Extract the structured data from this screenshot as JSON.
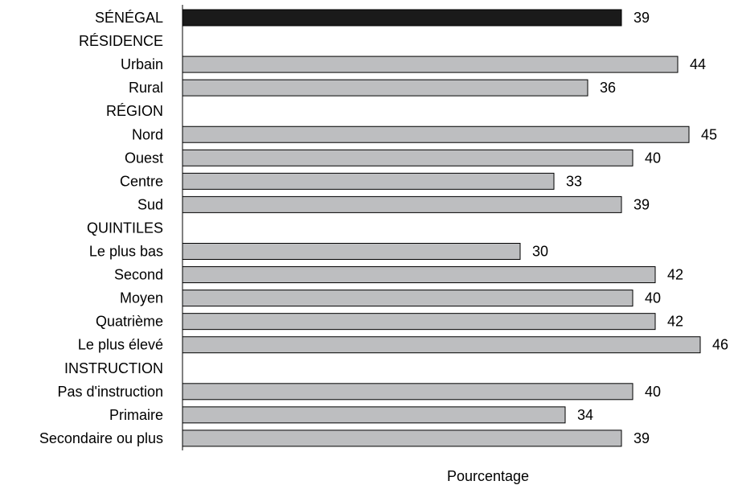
{
  "chart_data": {
    "type": "bar",
    "orientation": "horizontal",
    "title": "",
    "xlabel": "Pourcentage",
    "ylabel": "",
    "xlim": [
      0,
      46
    ],
    "grid": false,
    "rows": [
      {
        "label": "SÉNÉGAL",
        "value": 39,
        "kind": "total"
      },
      {
        "label": "RÉSIDENCE",
        "value": null,
        "kind": "header"
      },
      {
        "label": "Urbain",
        "value": 44,
        "kind": "bar"
      },
      {
        "label": "Rural",
        "value": 36,
        "kind": "bar"
      },
      {
        "label": "RÉGION",
        "value": null,
        "kind": "header"
      },
      {
        "label": "Nord",
        "value": 45,
        "kind": "bar"
      },
      {
        "label": "Ouest",
        "value": 40,
        "kind": "bar"
      },
      {
        "label": "Centre",
        "value": 33,
        "kind": "bar"
      },
      {
        "label": "Sud",
        "value": 39,
        "kind": "bar"
      },
      {
        "label": "QUINTILES",
        "value": null,
        "kind": "header"
      },
      {
        "label": "Le plus bas",
        "value": 30,
        "kind": "bar"
      },
      {
        "label": "Second",
        "value": 42,
        "kind": "bar"
      },
      {
        "label": "Moyen",
        "value": 40,
        "kind": "bar"
      },
      {
        "label": "Quatrième",
        "value": 42,
        "kind": "bar"
      },
      {
        "label": "Le plus élevé",
        "value": 46,
        "kind": "bar"
      },
      {
        "label": "INSTRUCTION",
        "value": null,
        "kind": "header"
      },
      {
        "label": "Pas d'instruction",
        "value": 40,
        "kind": "bar"
      },
      {
        "label": "Primaire",
        "value": 34,
        "kind": "bar"
      },
      {
        "label": "Secondaire ou plus",
        "value": 39,
        "kind": "bar"
      }
    ],
    "colors": {
      "total": "#1a1a1a",
      "bar": "#bdbec0",
      "bar_stroke": "#000000"
    }
  }
}
